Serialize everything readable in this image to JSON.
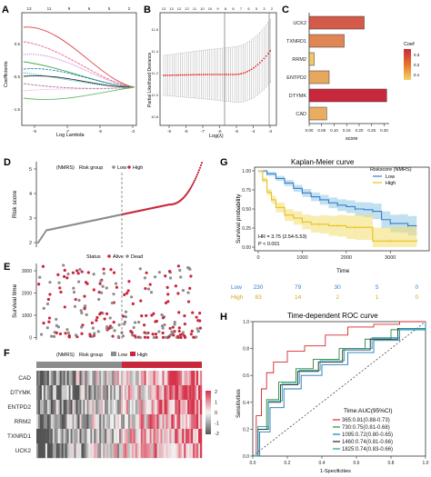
{
  "panels": {
    "A": {
      "letter": "A",
      "ylabel": "Coefficients",
      "xlabel": "Log Lambda",
      "top_ticks": [
        "13",
        "11",
        "9",
        "6",
        "5",
        "2"
      ],
      "x_ticks": [
        "-9",
        "-7",
        "-5",
        "-3"
      ],
      "y_ticks": [
        "-1.5",
        "-0.5",
        "0.5"
      ]
    },
    "B": {
      "letter": "B",
      "ylabel": "Partial Likelihood Deviance",
      "xlabel": "Log(λ)",
      "top_ticks": [
        "13",
        "13",
        "12",
        "12",
        "11",
        "10",
        "10",
        "9",
        "8",
        "8",
        "7",
        "6",
        "5",
        "3",
        "2"
      ],
      "x_ticks": [
        "-9",
        "-8",
        "-7",
        "-6",
        "-5",
        "-4",
        "-3"
      ],
      "y_ticks": [
        "11.6",
        "11.4",
        "11.2",
        "11.0",
        "10.8"
      ]
    },
    "C": {
      "letter": "C",
      "xlabel": "score",
      "legend_title": "Coef",
      "legend_ticks": [
        "0.3",
        "0.2",
        "0.1"
      ],
      "x_ticks": [
        "0.00",
        "0.05",
        "0.10",
        "0.15",
        "0.20",
        "0.25",
        "0.30"
      ]
    },
    "D": {
      "letter": "D",
      "ylabel": "Risk score",
      "legend_prefix": "(NMRS)",
      "legend_title": "Risk group",
      "legend_low": "Low",
      "legend_high": "High",
      "y_ticks": [
        "5",
        "4",
        "3",
        "2"
      ]
    },
    "E": {
      "letter": "E",
      "ylabel": "Survival time",
      "legend_title": "Status",
      "legend_alive": "Alive",
      "legend_dead": "Dead",
      "y_ticks": [
        "3000",
        "2000",
        "1000",
        "0"
      ]
    },
    "F": {
      "letter": "F",
      "legend_prefix": "(NMRS)",
      "legend_title": "Risk group",
      "legend_low": "Low",
      "legend_high": "High",
      "genes": [
        "CAD",
        "DTYMK",
        "ENTPD2",
        "RRM2",
        "TXNRD1",
        "UCK2"
      ],
      "scale_ticks": [
        "2",
        "1",
        "0",
        "-1",
        "-2"
      ]
    },
    "G": {
      "letter": "G",
      "title": "Kaplan-Meier curve",
      "ylabel": "Survival probability",
      "xlabel": "Time",
      "legend_title": "Riskscore (NMRS)",
      "legend_low": "Low",
      "legend_high": "High",
      "hr_text": "HR = 3.75 (2.54-5.53)",
      "p_text": "P < 0.001",
      "x_ticks": [
        "0",
        "1000",
        "2000",
        "3000"
      ],
      "y_ticks": [
        "1.00",
        "0.75",
        "0.50",
        "0.25",
        "0.00"
      ],
      "risk_low_label": "Low",
      "risk_high_label": "High",
      "risk_low": [
        "230",
        "79",
        "30",
        "5",
        "0"
      ],
      "risk_high": [
        "83",
        "14",
        "2",
        "1",
        "0"
      ]
    },
    "H": {
      "letter": "H",
      "title": "Time-dependent ROC curve",
      "ylabel": "Sensitivities",
      "xlabel": "1-Specificities",
      "legend_title": "Time:AUC(95%CI)",
      "legend_items": [
        "365:0.81(0.88-0.73)",
        "730:0.75(0.81-0.68)",
        "1095:0.72(0.80-0.65)",
        "1460:0.74(0.81-0.66)",
        "1825:0.74(0.83-0.66)"
      ],
      "x_ticks": [
        "0.0",
        "0.2",
        "0.4",
        "0.6",
        "0.8",
        "1.0"
      ],
      "y_ticks": [
        "1.0",
        "0.8",
        "0.6",
        "0.4",
        "0.2",
        "0.0"
      ]
    }
  },
  "colors": {
    "low": "#8c8c8c",
    "high": "#c8283c",
    "km_low": "#3a7dc9",
    "km_high": "#e6c21f",
    "km_low_band": "#8ec8e6",
    "km_high_band": "#f2dc6e",
    "roc": [
      "#d62728",
      "#2b8a3e",
      "#1f77b4",
      "#222222",
      "#17a0a8"
    ]
  },
  "chart_data": [
    {
      "type": "bar",
      "panel": "C",
      "categories": [
        "UCK2",
        "TXNRD1",
        "RRM2",
        "ENTPD2",
        "DTYMK",
        "CAD"
      ],
      "values": [
        0.22,
        0.14,
        0.02,
        0.08,
        0.31,
        0.07
      ],
      "xlabel": "score",
      "xlim": [
        0,
        0.32
      ]
    },
    {
      "type": "line",
      "panel": "G",
      "title": "Kaplan-Meier curve",
      "xlabel": "Time",
      "ylabel": "Survival probability",
      "xlim": [
        0,
        3800
      ],
      "ylim": [
        0,
        1
      ],
      "series": [
        {
          "name": "Low",
          "x": [
            0,
            200,
            400,
            600,
            800,
            1000,
            1200,
            1400,
            1600,
            1800,
            2000,
            2200,
            2400,
            2600,
            2800,
            3000,
            3200,
            3400,
            3600
          ],
          "y": [
            1.0,
            0.96,
            0.9,
            0.84,
            0.77,
            0.71,
            0.66,
            0.62,
            0.58,
            0.55,
            0.53,
            0.5,
            0.49,
            0.47,
            0.36,
            0.31,
            0.31,
            0.28,
            0.28
          ]
        },
        {
          "name": "High",
          "x": [
            0,
            100,
            200,
            300,
            400,
            600,
            800,
            1000,
            1200,
            1400,
            1600,
            1800,
            2000,
            2200,
            2600,
            3000,
            3400,
            3600
          ],
          "y": [
            1.0,
            0.88,
            0.72,
            0.62,
            0.52,
            0.42,
            0.38,
            0.33,
            0.3,
            0.3,
            0.28,
            0.28,
            0.26,
            0.26,
            0.08,
            0.08,
            0.08,
            0.08
          ]
        }
      ]
    },
    {
      "type": "line",
      "panel": "H",
      "title": "Time-dependent ROC curve",
      "xlabel": "1-Specificities",
      "ylabel": "Sensitivities",
      "xlim": [
        0,
        1
      ],
      "ylim": [
        0,
        1
      ],
      "series": [
        {
          "name": "365:0.81(0.88-0.73)",
          "x": [
            0,
            0.02,
            0.05,
            0.08,
            0.12,
            0.2,
            0.3,
            0.42,
            0.55,
            0.7,
            0.85,
            1.0
          ],
          "y": [
            0,
            0.3,
            0.5,
            0.62,
            0.7,
            0.78,
            0.82,
            0.9,
            0.96,
            0.98,
            1.0,
            1.0
          ]
        },
        {
          "name": "730:0.75(0.81-0.68)",
          "x": [
            0,
            0.03,
            0.08,
            0.15,
            0.25,
            0.35,
            0.5,
            0.65,
            0.8,
            1.0
          ],
          "y": [
            0,
            0.2,
            0.42,
            0.55,
            0.65,
            0.72,
            0.8,
            0.87,
            0.94,
            1.0
          ]
        },
        {
          "name": "1095:0.72(0.80-0.65)",
          "x": [
            0,
            0.04,
            0.1,
            0.18,
            0.28,
            0.4,
            0.55,
            0.7,
            0.85,
            1.0
          ],
          "y": [
            0,
            0.18,
            0.36,
            0.5,
            0.6,
            0.68,
            0.77,
            0.86,
            0.94,
            1.0
          ]
        },
        {
          "name": "1460:0.74(0.81-0.66)",
          "x": [
            0,
            0.03,
            0.09,
            0.16,
            0.26,
            0.38,
            0.52,
            0.68,
            0.84,
            1.0
          ],
          "y": [
            0,
            0.2,
            0.4,
            0.53,
            0.63,
            0.7,
            0.79,
            0.87,
            0.95,
            1.0
          ]
        },
        {
          "name": "1825:0.74(0.83-0.66)",
          "x": [
            0,
            0.03,
            0.09,
            0.17,
            0.27,
            0.39,
            0.53,
            0.69,
            0.85,
            1.0
          ],
          "y": [
            0,
            0.22,
            0.41,
            0.54,
            0.64,
            0.71,
            0.8,
            0.88,
            0.95,
            1.0
          ]
        }
      ]
    }
  ]
}
